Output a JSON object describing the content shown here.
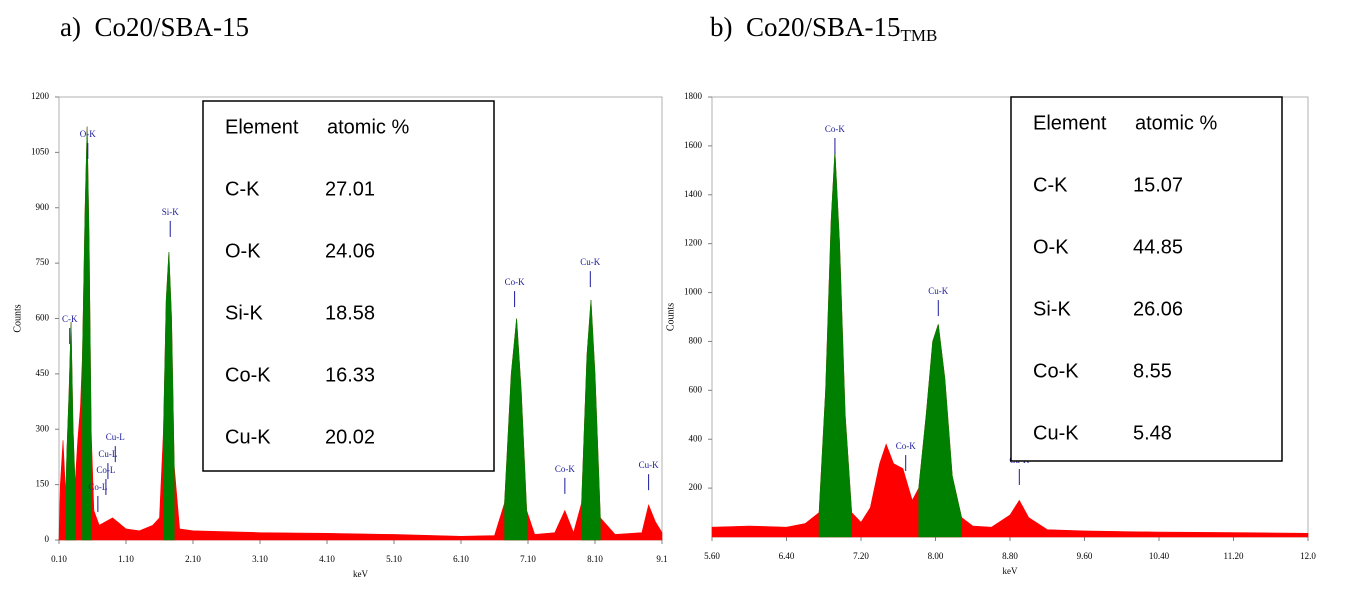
{
  "chart_data": [
    {
      "type": "area",
      "title": "a)  Co20/SBA-15",
      "x_label": "keV",
      "y_label": "Counts",
      "xlim": [
        0.1,
        9.1
      ],
      "xticks": [
        {
          "value": 0.1,
          "label": "0.10"
        },
        {
          "value": 1.1,
          "label": "1.10"
        },
        {
          "value": 2.1,
          "label": "2.10"
        },
        {
          "value": 3.1,
          "label": "3.10"
        },
        {
          "value": 4.1,
          "label": "4.10"
        },
        {
          "value": 5.1,
          "label": "5.10"
        },
        {
          "value": 6.1,
          "label": "6.10"
        },
        {
          "value": 7.1,
          "label": "7.10"
        },
        {
          "value": 8.1,
          "label": "8.10"
        },
        {
          "value": 9.1,
          "label": "9.1"
        }
      ],
      "ylim": [
        0,
        1200
      ],
      "yticks": [
        0,
        150,
        300,
        450,
        600,
        750,
        900,
        1050,
        1200
      ],
      "x": [
        0.1,
        0.12,
        0.16,
        0.2,
        0.22,
        0.25,
        0.28,
        0.31,
        0.34,
        0.38,
        0.42,
        0.45,
        0.49,
        0.52,
        0.55,
        0.58,
        0.62,
        0.7,
        0.8,
        0.9,
        1.0,
        1.1,
        1.3,
        1.5,
        1.6,
        1.66,
        1.7,
        1.74,
        1.78,
        1.82,
        1.9,
        2.1,
        3.1,
        4.1,
        5.1,
        6.1,
        6.6,
        6.75,
        6.85,
        6.93,
        7.0,
        7.08,
        7.2,
        7.5,
        7.65,
        7.78,
        7.9,
        7.98,
        8.04,
        8.1,
        8.18,
        8.4,
        8.8,
        8.9,
        9.0,
        9.1
      ],
      "series": [
        {
          "color": "#ff0000",
          "values": [
            0,
            150,
            270,
            120,
            250,
            400,
            590,
            300,
            150,
            270,
            360,
            500,
            900,
            1120,
            800,
            300,
            80,
            40,
            50,
            60,
            45,
            30,
            25,
            40,
            60,
            300,
            650,
            780,
            600,
            200,
            30,
            25,
            20,
            18,
            15,
            10,
            12,
            100,
            450,
            600,
            400,
            80,
            15,
            20,
            80,
            20,
            100,
            500,
            650,
            450,
            60,
            15,
            20,
            95,
            50,
            20
          ]
        },
        {
          "color": "#008000",
          "values": [
            null,
            null,
            null,
            120,
            250,
            400,
            590,
            300,
            150,
            null,
            null,
            500,
            900,
            1120,
            800,
            300,
            null,
            null,
            null,
            null,
            null,
            null,
            null,
            null,
            null,
            300,
            650,
            780,
            600,
            200,
            null,
            null,
            null,
            null,
            null,
            null,
            null,
            100,
            450,
            600,
            400,
            80,
            null,
            null,
            null,
            null,
            100,
            500,
            650,
            450,
            60,
            null,
            null,
            null,
            null,
            null
          ]
        }
      ],
      "annotations": [
        {
          "text": "O-K",
          "x": 0.53,
          "y": 1097
        },
        {
          "text": "C-K",
          "x": 0.26,
          "y": 596
        },
        {
          "text": "Si-K",
          "x": 1.76,
          "y": 886
        },
        {
          "text": "Co-K",
          "x": 6.9,
          "y": 696
        },
        {
          "text": "Cu-K",
          "x": 8.03,
          "y": 750
        },
        {
          "text": "Co-K",
          "x": 7.65,
          "y": 190
        },
        {
          "text": "Cu-K",
          "x": 8.9,
          "y": 200
        },
        {
          "text": "Cu-L",
          "x": 0.94,
          "y": 276
        },
        {
          "text": "Cu-L",
          "x": 0.83,
          "y": 230
        },
        {
          "text": "Co-L",
          "x": 0.8,
          "y": 187
        },
        {
          "text": "Co-L",
          "x": 0.68,
          "y": 141
        }
      ],
      "table": {
        "header": [
          "Element",
          "atomic %"
        ],
        "rows": [
          [
            "C-K",
            "27.01"
          ],
          [
            "O-K",
            "24.06"
          ],
          [
            "Si-K",
            "18.58"
          ],
          [
            "Co-K",
            "16.33"
          ],
          [
            "Cu-K",
            "20.02"
          ]
        ]
      }
    },
    {
      "type": "area",
      "title": "b)  Co20/SBA-15",
      "title_subscript": "TMB",
      "x_label": "keV",
      "y_label": "Counts",
      "xlim": [
        5.6,
        12.0
      ],
      "xticks": [
        {
          "value": 5.6,
          "label": "5.60"
        },
        {
          "value": 6.4,
          "label": "6.40"
        },
        {
          "value": 7.2,
          "label": "7.20"
        },
        {
          "value": 8.0,
          "label": "8.00"
        },
        {
          "value": 8.8,
          "label": "8.80"
        },
        {
          "value": 9.6,
          "label": "9.60"
        },
        {
          "value": 10.4,
          "label": "10.40"
        },
        {
          "value": 11.2,
          "label": "11.20"
        },
        {
          "value": 12.0,
          "label": "12.0"
        }
      ],
      "ylim": [
        0,
        1800
      ],
      "yticks": [
        200,
        400,
        600,
        800,
        1000,
        1200,
        1400,
        1600,
        1800
      ],
      "x": [
        5.6,
        6.0,
        6.4,
        6.6,
        6.75,
        6.82,
        6.88,
        6.92,
        6.97,
        7.03,
        7.1,
        7.2,
        7.3,
        7.4,
        7.47,
        7.55,
        7.65,
        7.75,
        7.82,
        7.9,
        7.97,
        8.03,
        8.1,
        8.18,
        8.28,
        8.4,
        8.6,
        8.8,
        8.9,
        9.0,
        9.2,
        9.6,
        10.4,
        11.2,
        12.0
      ],
      "series": [
        {
          "color": "#ff0000",
          "values": [
            40,
            45,
            40,
            55,
            100,
            600,
            1300,
            1580,
            1200,
            500,
            100,
            60,
            120,
            300,
            380,
            300,
            280,
            150,
            200,
            500,
            800,
            870,
            650,
            250,
            80,
            45,
            40,
            90,
            150,
            80,
            30,
            25,
            20,
            18,
            15
          ]
        },
        {
          "color": "#008000",
          "values": [
            null,
            null,
            null,
            null,
            100,
            600,
            1300,
            1580,
            1200,
            500,
            100,
            null,
            null,
            null,
            null,
            null,
            null,
            null,
            200,
            500,
            800,
            870,
            650,
            250,
            80,
            null,
            null,
            null,
            null,
            null,
            null,
            null,
            null,
            null,
            null
          ]
        }
      ],
      "annotations": [
        {
          "text": "Co-K",
          "x": 6.92,
          "y": 1665
        },
        {
          "text": "Cu-K",
          "x": 8.03,
          "y": 1002
        },
        {
          "text": "Co-K",
          "x": 7.68,
          "y": 368
        },
        {
          "text": "Cu-K",
          "x": 8.9,
          "y": 311
        }
      ],
      "table": {
        "header": [
          "Element",
          "atomic %"
        ],
        "rows": [
          [
            "C-K",
            "15.07"
          ],
          [
            "O-K",
            "44.85"
          ],
          [
            "Si-K",
            "26.06"
          ],
          [
            "Co-K",
            "8.55"
          ],
          [
            "Cu-K",
            "5.48"
          ]
        ]
      }
    }
  ]
}
